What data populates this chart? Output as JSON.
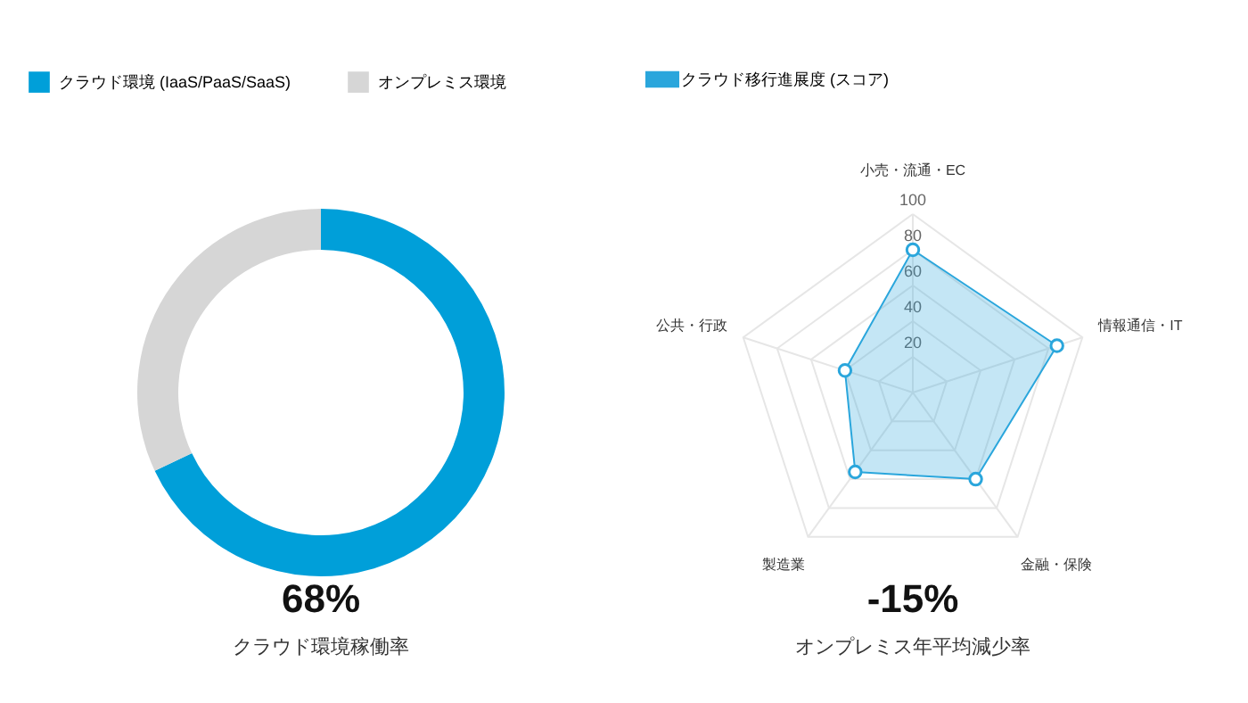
{
  "chart_data": [
    {
      "type": "donut",
      "categories": [
        "クラウド環境 (IaaS/PaaS/SaaS)",
        "オンプレミス環境"
      ],
      "values": [
        68,
        32
      ],
      "colors": [
        "#009fd9",
        "#d6d6d6"
      ],
      "legend": "top",
      "annotations": [
        "68%",
        "クラウド環境稼働率"
      ]
    },
    {
      "type": "radar",
      "categories": [
        "小売・流通・EC",
        "情報通信・IT",
        "金融・保険",
        "製造業",
        "公共・行政"
      ],
      "series": [
        {
          "name": "クラウド移行進展度 (スコア)",
          "color": "#2aa6dc",
          "values": [
            80,
            85,
            60,
            55,
            40
          ]
        }
      ],
      "ylim": [
        0,
        100
      ],
      "yticks": [
        20,
        40,
        60,
        80,
        100
      ],
      "grid": true,
      "marker": "circle",
      "legend": "top",
      "annotations": [
        "-15%",
        "オンプレミス年平均減少率"
      ]
    }
  ]
}
